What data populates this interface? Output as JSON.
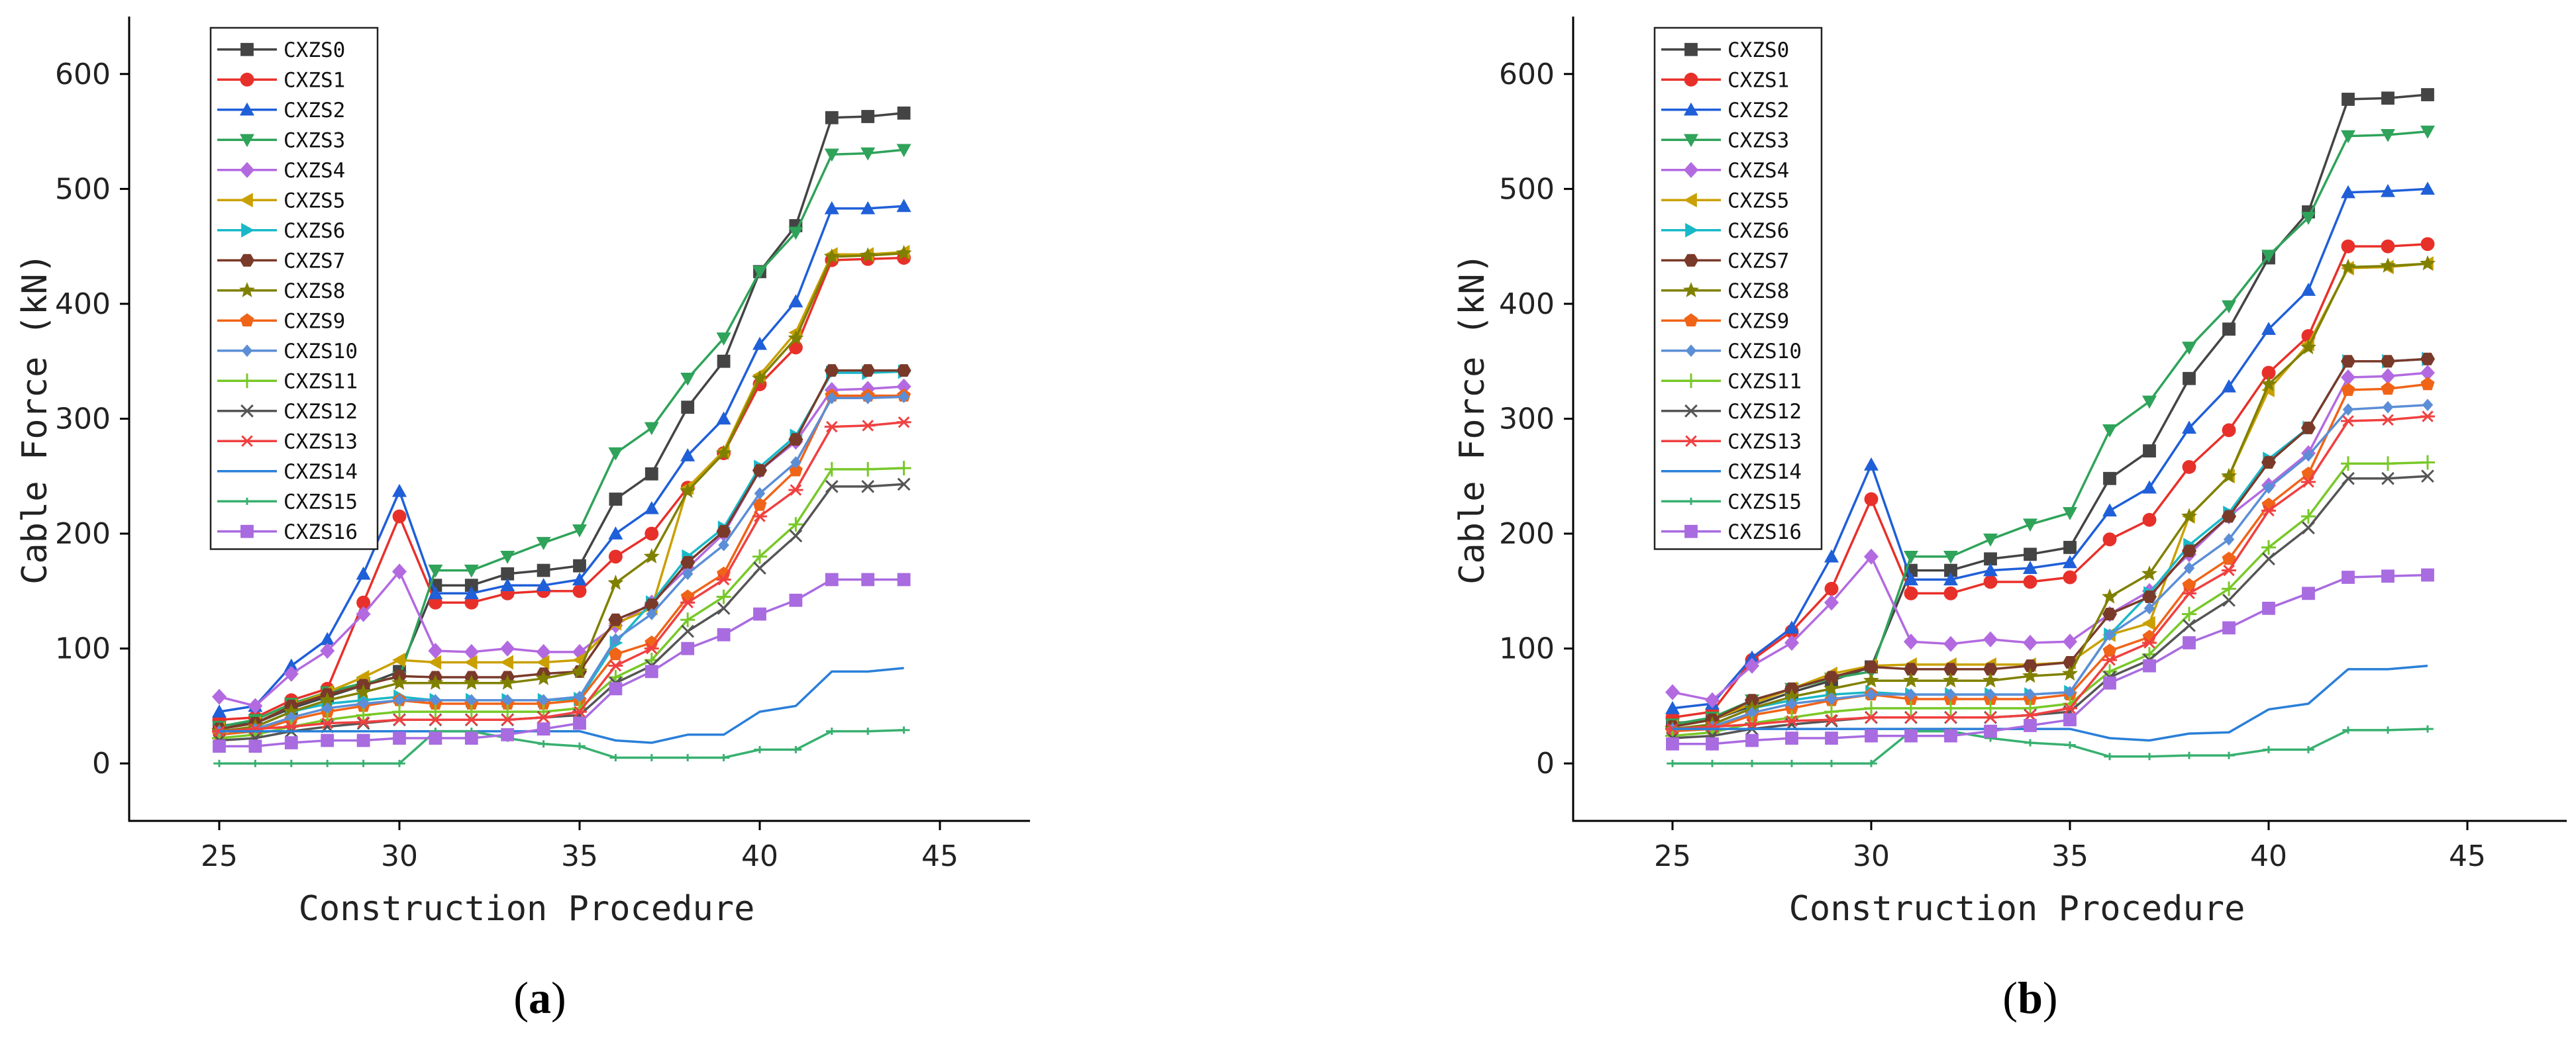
{
  "colors": {
    "CXZS0": "#444444",
    "CXZS1": "#e8302a",
    "CXZS2": "#1f5fd8",
    "CXZS3": "#2fa35a",
    "CXZS4": "#b36ae0",
    "CXZS5": "#c9a000",
    "CXZS6": "#19b8c8",
    "CXZS7": "#7a3a2a",
    "CXZS8": "#808000",
    "CXZS9": "#f06418",
    "CXZS10": "#5b8ed6",
    "CXZS11": "#78c828",
    "CXZS12": "#555555",
    "CXZS13": "#f04040",
    "CXZS14": "#2a7fd8",
    "CXZS15": "#38b070",
    "CXZS16": "#a96be0"
  },
  "markers": {
    "CXZS0": "square",
    "CXZS1": "circle",
    "CXZS2": "triangle-up",
    "CXZS3": "triangle-down",
    "CXZS4": "diamond",
    "CXZS5": "triangle-left",
    "CXZS6": "triangle-right",
    "CXZS7": "hexagon",
    "CXZS8": "star",
    "CXZS9": "pentagon",
    "CXZS10": "small-diamond",
    "CXZS11": "plus",
    "CXZS12": "cross",
    "CXZS13": "asterisk",
    "CXZS14": "none",
    "CXZS15": "dash",
    "CXZS16": "square"
  },
  "chart_data": [
    {
      "type": "line",
      "panel_label": "a",
      "panel_label_open": "(",
      "panel_label_close": ")",
      "xlabel": "Construction Procedure",
      "ylabel": "Cable Force (kN)",
      "xlim": [
        22.5,
        47.5
      ],
      "ylim": [
        -50,
        650
      ],
      "xticks": [
        25,
        30,
        35,
        40,
        45
      ],
      "yticks": [
        0,
        100,
        200,
        300,
        400,
        500,
        600
      ],
      "legend_position": "top-left",
      "x": [
        25,
        26,
        27,
        28,
        29,
        30,
        31,
        32,
        33,
        34,
        35,
        36,
        37,
        38,
        39,
        40,
        41,
        42,
        43,
        44
      ],
      "series": [
        {
          "name": "CXZS0",
          "values": [
            33,
            35,
            48,
            58,
            68,
            80,
            155,
            155,
            165,
            168,
            172,
            230,
            252,
            310,
            350,
            428,
            468,
            562,
            563,
            566
          ]
        },
        {
          "name": "CXZS1",
          "values": [
            38,
            40,
            55,
            65,
            140,
            215,
            140,
            140,
            148,
            150,
            150,
            180,
            200,
            240,
            270,
            330,
            362,
            438,
            439,
            440
          ]
        },
        {
          "name": "CXZS2",
          "values": [
            45,
            50,
            85,
            108,
            165,
            237,
            148,
            148,
            155,
            155,
            160,
            200,
            222,
            268,
            300,
            365,
            402,
            483,
            483,
            485
          ]
        },
        {
          "name": "CXZS3",
          "values": [
            32,
            38,
            52,
            62,
            70,
            75,
            168,
            168,
            180,
            192,
            203,
            270,
            292,
            335,
            370,
            428,
            462,
            530,
            531,
            534
          ]
        },
        {
          "name": "CXZS4",
          "values": [
            58,
            50,
            78,
            98,
            130,
            167,
            98,
            97,
            100,
            97,
            97,
            120,
            140,
            170,
            200,
            255,
            280,
            325,
            326,
            328
          ]
        },
        {
          "name": "CXZS5",
          "values": [
            30,
            35,
            50,
            62,
            75,
            90,
            88,
            88,
            88,
            88,
            90,
            122,
            135,
            240,
            272,
            338,
            375,
            443,
            443,
            445
          ]
        },
        {
          "name": "CXZS6",
          "values": [
            28,
            32,
            45,
            52,
            55,
            58,
            55,
            55,
            55,
            55,
            56,
            105,
            140,
            180,
            205,
            258,
            285,
            340,
            340,
            341
          ]
        },
        {
          "name": "CXZS7",
          "values": [
            30,
            35,
            50,
            60,
            68,
            76,
            75,
            75,
            75,
            78,
            80,
            125,
            138,
            175,
            202,
            255,
            282,
            342,
            342,
            342
          ]
        },
        {
          "name": "CXZS8",
          "values": [
            28,
            32,
            45,
            55,
            62,
            70,
            70,
            70,
            70,
            74,
            80,
            157,
            180,
            237,
            270,
            335,
            370,
            441,
            442,
            444
          ]
        },
        {
          "name": "CXZS9",
          "values": [
            25,
            28,
            38,
            45,
            50,
            55,
            52,
            52,
            52,
            52,
            55,
            95,
            105,
            145,
            165,
            225,
            255,
            320,
            320,
            320
          ]
        },
        {
          "name": "CXZS10",
          "values": [
            28,
            30,
            40,
            48,
            52,
            55,
            55,
            55,
            55,
            55,
            58,
            108,
            130,
            165,
            190,
            235,
            262,
            318,
            318,
            319
          ]
        },
        {
          "name": "CXZS11",
          "values": [
            22,
            25,
            32,
            38,
            42,
            45,
            45,
            45,
            45,
            45,
            48,
            75,
            90,
            125,
            145,
            180,
            208,
            256,
            256,
            257
          ]
        },
        {
          "name": "CXZS12",
          "values": [
            20,
            22,
            28,
            32,
            35,
            38,
            38,
            38,
            38,
            40,
            42,
            70,
            85,
            115,
            135,
            170,
            198,
            241,
            241,
            243
          ]
        },
        {
          "name": "CXZS13",
          "values": [
            28,
            30,
            32,
            35,
            36,
            38,
            38,
            38,
            38,
            40,
            45,
            85,
            100,
            140,
            160,
            215,
            238,
            293,
            294,
            297
          ]
        },
        {
          "name": "CXZS14",
          "values": [
            28,
            28,
            28,
            28,
            28,
            28,
            28,
            28,
            28,
            28,
            28,
            20,
            18,
            25,
            25,
            45,
            50,
            80,
            80,
            83
          ]
        },
        {
          "name": "CXZS15",
          "values": [
            0,
            0,
            0,
            0,
            0,
            0,
            28,
            28,
            22,
            17,
            15,
            5,
            5,
            5,
            5,
            12,
            12,
            28,
            28,
            29
          ]
        },
        {
          "name": "CXZS16",
          "values": [
            15,
            15,
            18,
            20,
            20,
            22,
            22,
            22,
            25,
            30,
            35,
            65,
            80,
            100,
            112,
            130,
            142,
            160,
            160,
            160
          ]
        }
      ]
    },
    {
      "type": "line",
      "panel_label": "b",
      "panel_label_open": "(",
      "panel_label_close": ")",
      "xlabel": "Construction Procedure",
      "ylabel": "Cable Force (kN)",
      "xlim": [
        22.5,
        47.5
      ],
      "ylim": [
        -50,
        650
      ],
      "xticks": [
        25,
        30,
        35,
        40,
        45
      ],
      "yticks": [
        0,
        100,
        200,
        300,
        400,
        500,
        600
      ],
      "legend_position": "top-left",
      "x": [
        25,
        26,
        27,
        28,
        29,
        30,
        31,
        32,
        33,
        34,
        35,
        36,
        37,
        38,
        39,
        40,
        41,
        42,
        43,
        44
      ],
      "series": [
        {
          "name": "CXZS0",
          "values": [
            35,
            38,
            50,
            62,
            72,
            84,
            168,
            168,
            178,
            182,
            188,
            248,
            272,
            335,
            378,
            440,
            480,
            578,
            579,
            582
          ]
        },
        {
          "name": "CXZS1",
          "values": [
            40,
            45,
            90,
            115,
            152,
            230,
            148,
            148,
            158,
            158,
            162,
            195,
            212,
            258,
            290,
            340,
            372,
            450,
            450,
            452
          ]
        },
        {
          "name": "CXZS2",
          "values": [
            48,
            52,
            92,
            118,
            180,
            260,
            160,
            160,
            168,
            170,
            175,
            220,
            240,
            292,
            328,
            378,
            412,
            497,
            498,
            500
          ]
        },
        {
          "name": "CXZS3",
          "values": [
            34,
            40,
            55,
            65,
            74,
            80,
            180,
            180,
            195,
            208,
            218,
            290,
            315,
            362,
            398,
            442,
            475,
            546,
            547,
            550
          ]
        },
        {
          "name": "CXZS4",
          "values": [
            62,
            55,
            85,
            105,
            140,
            180,
            106,
            104,
            108,
            105,
            106,
            130,
            150,
            182,
            215,
            242,
            270,
            336,
            337,
            340
          ]
        },
        {
          "name": "CXZS5",
          "values": [
            32,
            38,
            52,
            65,
            78,
            85,
            86,
            86,
            86,
            86,
            88,
            112,
            122,
            215,
            250,
            325,
            365,
            431,
            432,
            435
          ]
        },
        {
          "name": "CXZS6",
          "values": [
            30,
            34,
            48,
            55,
            60,
            62,
            60,
            60,
            60,
            60,
            62,
            112,
            148,
            190,
            218,
            265,
            292,
            350,
            350,
            352
          ]
        },
        {
          "name": "CXZS7",
          "values": [
            32,
            38,
            55,
            65,
            75,
            84,
            82,
            82,
            82,
            85,
            88,
            130,
            145,
            185,
            215,
            262,
            292,
            350,
            350,
            352
          ]
        },
        {
          "name": "CXZS8",
          "values": [
            30,
            34,
            48,
            58,
            65,
            72,
            72,
            72,
            72,
            76,
            78,
            145,
            165,
            215,
            250,
            330,
            362,
            432,
            433,
            435
          ]
        },
        {
          "name": "CXZS9",
          "values": [
            28,
            30,
            42,
            48,
            55,
            60,
            56,
            56,
            56,
            56,
            60,
            98,
            110,
            155,
            178,
            225,
            252,
            325,
            326,
            330
          ]
        },
        {
          "name": "CXZS10",
          "values": [
            30,
            32,
            44,
            52,
            56,
            60,
            60,
            60,
            60,
            60,
            62,
            112,
            135,
            170,
            195,
            240,
            268,
            308,
            310,
            312
          ]
        },
        {
          "name": "CXZS11",
          "values": [
            24,
            27,
            35,
            40,
            45,
            48,
            48,
            48,
            48,
            48,
            52,
            80,
            95,
            130,
            152,
            188,
            215,
            261,
            261,
            262
          ]
        },
        {
          "name": "CXZS12",
          "values": [
            22,
            24,
            30,
            34,
            37,
            40,
            40,
            40,
            40,
            42,
            45,
            75,
            90,
            120,
            142,
            178,
            205,
            248,
            248,
            250
          ]
        },
        {
          "name": "CXZS13",
          "values": [
            30,
            32,
            34,
            37,
            38,
            40,
            40,
            40,
            40,
            42,
            48,
            90,
            105,
            148,
            168,
            220,
            245,
            298,
            299,
            302
          ]
        },
        {
          "name": "CXZS14",
          "values": [
            30,
            30,
            30,
            30,
            30,
            30,
            30,
            30,
            30,
            30,
            30,
            22,
            20,
            26,
            27,
            47,
            52,
            82,
            82,
            85
          ]
        },
        {
          "name": "CXZS15",
          "values": [
            0,
            0,
            0,
            0,
            0,
            0,
            28,
            28,
            22,
            18,
            16,
            6,
            6,
            7,
            7,
            12,
            12,
            29,
            29,
            30
          ]
        },
        {
          "name": "CXZS16",
          "values": [
            17,
            17,
            20,
            22,
            22,
            24,
            24,
            24,
            28,
            33,
            38,
            70,
            85,
            105,
            118,
            135,
            148,
            162,
            163,
            164
          ]
        }
      ]
    }
  ]
}
